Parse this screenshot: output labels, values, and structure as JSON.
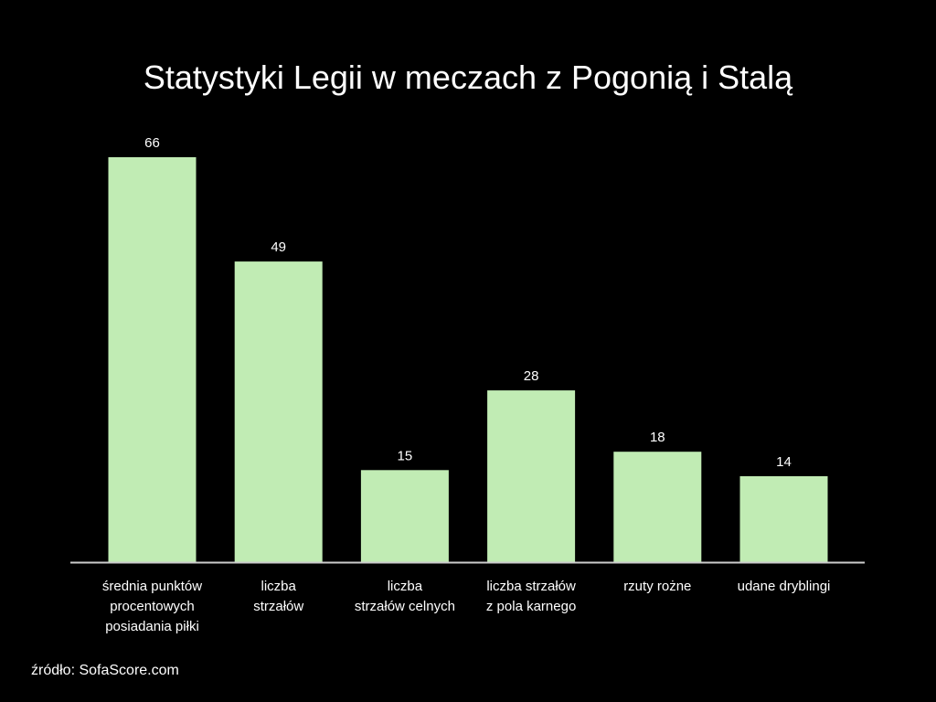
{
  "chart_data": {
    "type": "bar",
    "title": "Statystyki Legii w meczach z Pogonią i Stalą",
    "categories": [
      [
        "średnia punktów",
        "procentowych",
        "posiadania piłki"
      ],
      [
        "liczba",
        "strzałów"
      ],
      [
        "liczba",
        "strzałów celnych"
      ],
      [
        "liczba strzałów",
        "z pola karnego"
      ],
      [
        "rzuty rożne"
      ],
      [
        "udane dryblingi"
      ]
    ],
    "values": [
      66,
      49,
      15,
      28,
      18,
      14
    ],
    "value_labels": [
      "66",
      "49",
      "15",
      "28",
      "18",
      "14"
    ],
    "xlabel": "",
    "ylabel": "",
    "ylim": [
      0,
      66
    ],
    "grid": false,
    "legend": "none",
    "colors": {
      "bar": "#c1ecb4",
      "background": "#000000",
      "text": "#ffffff",
      "axis": "#cccccc"
    }
  },
  "source": "źródło: SofaScore.com"
}
